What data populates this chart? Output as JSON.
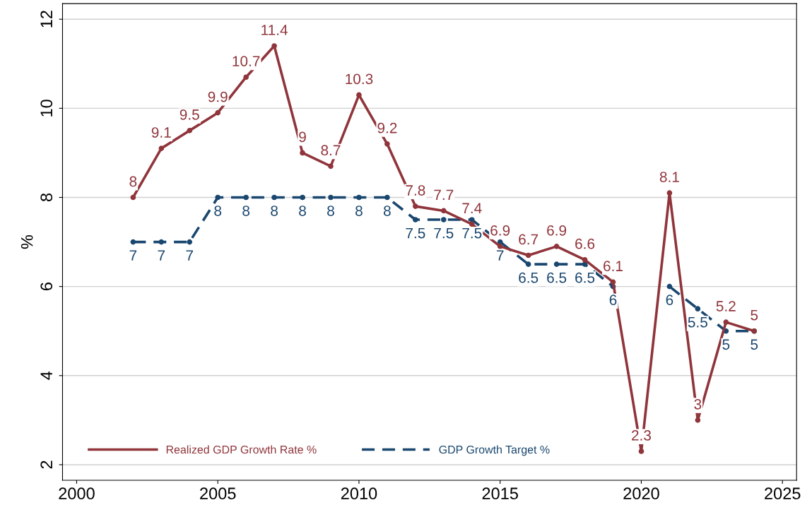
{
  "chart_data": {
    "type": "line",
    "ylabel": "%",
    "x": [
      2002,
      2003,
      2004,
      2005,
      2006,
      2007,
      2008,
      2009,
      2010,
      2011,
      2012,
      2013,
      2014,
      2015,
      2016,
      2017,
      2018,
      2019,
      2020,
      2021,
      2022,
      2023,
      2024
    ],
    "series": [
      {
        "name": "Realized GDP Growth Rate %",
        "color": "#90353b",
        "line_style": "solid",
        "values": [
          8,
          9.1,
          9.5,
          9.9,
          10.7,
          11.4,
          9,
          8.7,
          10.3,
          9.2,
          7.8,
          7.7,
          7.4,
          6.9,
          6.7,
          6.9,
          6.6,
          6.1,
          2.3,
          8.1,
          3,
          5.2,
          5
        ]
      },
      {
        "name": "GDP Growth Target %",
        "color": "#1a476f",
        "line_style": "dashed",
        "values": [
          7,
          7,
          7,
          8,
          8,
          8,
          8,
          8,
          8,
          8,
          7.5,
          7.5,
          7.5,
          7,
          6.5,
          6.5,
          6.5,
          6,
          null,
          6,
          5.5,
          5,
          5
        ]
      }
    ],
    "xlim": [
      1999.5,
      2025.5
    ],
    "xticks": [
      2000,
      2005,
      2010,
      2015,
      2020,
      2025
    ],
    "ylim": [
      1.65,
      12.35
    ],
    "yticks": [
      2,
      4,
      6,
      8,
      10,
      12
    ],
    "grid": "y",
    "legend": "bottom",
    "marker": "circle",
    "data_labels": true
  }
}
